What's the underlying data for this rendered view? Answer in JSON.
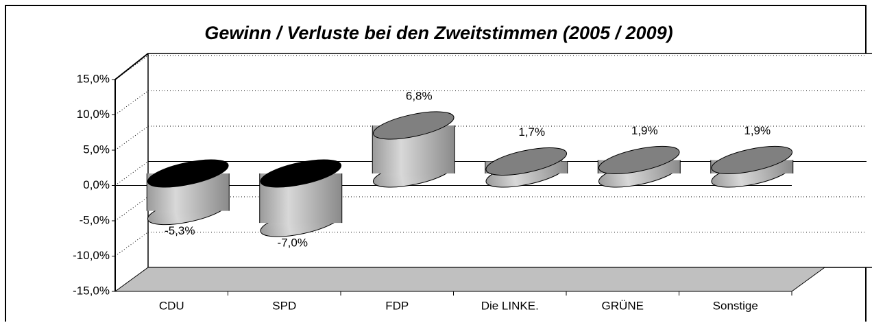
{
  "chart_data": {
    "type": "bar",
    "title": "Gewinn / Verluste bei den Zweitstimmen (2005 / 2009)",
    "categories": [
      "CDU",
      "SPD",
      "FDP",
      "Die LINKE.",
      "GRÜNE",
      "Sonstige"
    ],
    "values": [
      -5.3,
      -7.0,
      6.8,
      1.7,
      1.9,
      1.9
    ],
    "value_labels": [
      "-5,3%",
      "-7,0%",
      "6,8%",
      "1,7%",
      "1,9%",
      "1,9%"
    ],
    "color": "#b0b0b0",
    "ylim": [
      -15,
      15
    ],
    "yticks": [
      {
        "value": -15,
        "label": "-15,0%"
      },
      {
        "value": -10,
        "label": "-10,0%"
      },
      {
        "value": -5,
        "label": "-5,0%"
      },
      {
        "value": 0,
        "label": "0,0%"
      },
      {
        "value": 5,
        "label": "5,0%"
      },
      {
        "value": 10,
        "label": "10,0%"
      },
      {
        "value": 15,
        "label": "15,0%"
      }
    ],
    "grid": true
  }
}
